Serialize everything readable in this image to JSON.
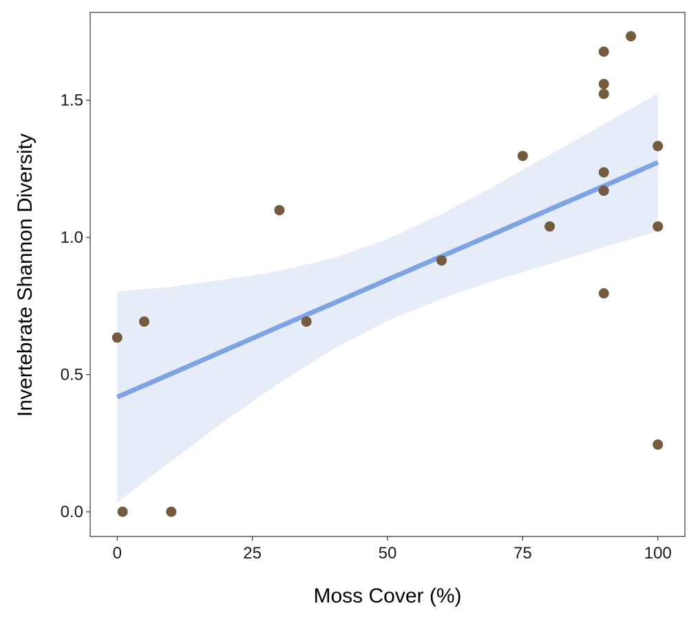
{
  "colors": {
    "points": "#745a3f",
    "fit_line": "#7ea3e3",
    "confidence_band": "#e6ecf8",
    "panel_border": "#333333",
    "background": "#ffffff"
  },
  "chart_data": {
    "type": "scatter",
    "title": "",
    "xlabel": "Moss Cover (%)",
    "ylabel": "Invertebrate Shannon Diversity",
    "xlim": [
      -5,
      105
    ],
    "ylim": [
      -0.09,
      1.82
    ],
    "x_ticks": [
      0,
      25,
      50,
      75,
      100
    ],
    "x_tick_labels": [
      "0",
      "25",
      "50",
      "75",
      "100"
    ],
    "y_ticks": [
      0.0,
      0.5,
      1.0,
      1.5
    ],
    "y_tick_labels": [
      "0.0",
      "0.5",
      "1.0",
      "1.5"
    ],
    "grid": false,
    "legend": "none",
    "points": [
      {
        "x": 0,
        "y": 0.635
      },
      {
        "x": 1,
        "y": 0.0
      },
      {
        "x": 5,
        "y": 0.693
      },
      {
        "x": 10,
        "y": 0.0
      },
      {
        "x": 30,
        "y": 1.099
      },
      {
        "x": 35,
        "y": 0.693
      },
      {
        "x": 60,
        "y": 0.916
      },
      {
        "x": 75,
        "y": 1.297
      },
      {
        "x": 80,
        "y": 1.04
      },
      {
        "x": 90,
        "y": 1.677
      },
      {
        "x": 90,
        "y": 1.559
      },
      {
        "x": 90,
        "y": 1.523
      },
      {
        "x": 90,
        "y": 1.237
      },
      {
        "x": 90,
        "y": 1.17
      },
      {
        "x": 90,
        "y": 0.796
      },
      {
        "x": 95,
        "y": 1.733
      },
      {
        "x": 100,
        "y": 1.333
      },
      {
        "x": 100,
        "y": 1.04
      },
      {
        "x": 100,
        "y": 0.245
      }
    ],
    "fit": {
      "method": "linear regression with confidence band",
      "x": [
        0,
        10,
        20,
        30,
        40,
        50,
        60,
        70,
        80,
        90,
        100
      ],
      "y": [
        0.418,
        0.503,
        0.589,
        0.675,
        0.76,
        0.846,
        0.931,
        1.016,
        1.102,
        1.187,
        1.273
      ],
      "lower": [
        0.033,
        0.185,
        0.332,
        0.47,
        0.593,
        0.696,
        0.776,
        0.844,
        0.903,
        0.964,
        1.022
      ],
      "upper": [
        0.803,
        0.82,
        0.847,
        0.878,
        0.925,
        0.994,
        1.085,
        1.19,
        1.302,
        1.412,
        1.525
      ]
    }
  }
}
